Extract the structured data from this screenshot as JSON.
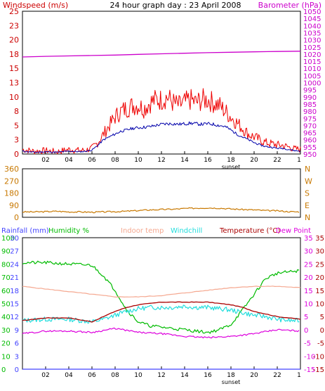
{
  "title": "24 hour graph day : 23 April 2008",
  "colors": {
    "wind": "#ee0000",
    "gust_avg": "#0000aa",
    "baro": "#cc00cc",
    "dir": "#c87800",
    "rain": "#4444ff",
    "hum": "#00bb00",
    "indoor": "#f5a890",
    "chill": "#22dddd",
    "temp": "#aa0000",
    "dew": "#dd00dd",
    "bg": "#ffffff",
    "border": "#000000"
  },
  "chart_data": [
    {
      "type": "line",
      "title": "24 hour graph day : 23 April 2008",
      "left_axis_label": "Windspeed (m/s)",
      "right_axis_label": "Barometer (hPa)",
      "left_ticks": [
        "25",
        "23",
        "20",
        "18",
        "15",
        "13",
        "10",
        "8",
        "5",
        "3",
        "0"
      ],
      "right_ticks": [
        "1050",
        "1045",
        "1040",
        "1035",
        "1030",
        "1025",
        "1020",
        "1015",
        "1010",
        "1005",
        "1000",
        "995",
        "990",
        "985",
        "980",
        "975",
        "970",
        "965",
        "960",
        "955",
        "950"
      ],
      "x_ticks": [
        "02",
        "04",
        "06",
        "08",
        "10",
        "12",
        "14",
        "16",
        "18",
        "20",
        "22"
      ],
      "x_end_tick": "1",
      "x_marker": "sunset",
      "ylim_left": [
        0,
        25
      ],
      "ylim_right": [
        950,
        1050
      ],
      "series": [
        {
          "key": "wind_gust",
          "axis": "left",
          "x": [
            0,
            1,
            2,
            3,
            4,
            5,
            5.5,
            6,
            6.5,
            7,
            7.5,
            8,
            8.5,
            9,
            9.5,
            10,
            10.5,
            11,
            11.5,
            12,
            12.5,
            13,
            13.5,
            14,
            14.5,
            15,
            15.5,
            16,
            16.5,
            17,
            17.5,
            18,
            18.5,
            19,
            19.5,
            20,
            20.5,
            21,
            21.5,
            22,
            22.5,
            23,
            23.5,
            24
          ],
          "values": [
            0.8,
            0.5,
            0.6,
            0.4,
            0.8,
            0.6,
            0.7,
            1.0,
            2.0,
            3.5,
            5.0,
            6.5,
            7.5,
            8.0,
            8.5,
            8.5,
            8.0,
            9.0,
            9.5,
            9.5,
            10.0,
            9.0,
            8.5,
            9.0,
            9.5,
            9.0,
            9.5,
            9.5,
            9.0,
            8.5,
            7.5,
            6.5,
            5.5,
            4.5,
            3.5,
            3.0,
            2.5,
            2.0,
            1.8,
            1.6,
            1.5,
            1.2,
            0.9,
            0.8
          ]
        },
        {
          "key": "wind_avg",
          "axis": "left",
          "x": [
            0,
            1,
            2,
            3,
            4,
            5,
            5.5,
            6,
            6.5,
            7,
            7.5,
            8,
            8.5,
            9,
            9.5,
            10,
            10.5,
            11,
            11.5,
            12,
            12.5,
            13,
            13.5,
            14,
            14.5,
            15,
            15.5,
            16,
            16.5,
            17,
            17.5,
            18,
            18.5,
            19,
            19.5,
            20,
            20.5,
            21,
            21.5,
            22,
            22.5,
            23,
            23.5,
            24
          ],
          "values": [
            0.5,
            0.3,
            0.4,
            0.3,
            0.5,
            0.4,
            0.5,
            0.7,
            1.5,
            2.5,
            3.0,
            3.5,
            4.0,
            4.2,
            4.5,
            4.6,
            4.7,
            4.8,
            5.0,
            5.2,
            5.3,
            5.3,
            5.2,
            5.3,
            5.4,
            5.3,
            5.2,
            5.3,
            5.2,
            5.0,
            4.8,
            4.2,
            3.5,
            3.0,
            2.5,
            2.0,
            1.6,
            1.3,
            1.2,
            1.0,
            1.0,
            0.8,
            0.6,
            0.5
          ]
        },
        {
          "key": "barometer",
          "axis": "right",
          "x": [
            0,
            2,
            4,
            6,
            8,
            10,
            12,
            14,
            16,
            18,
            20,
            22,
            24
          ],
          "values": [
            1018.0,
            1018.4,
            1018.7,
            1019.0,
            1019.3,
            1019.8,
            1020.2,
            1020.6,
            1021.0,
            1021.3,
            1021.6,
            1021.8,
            1022.0
          ]
        }
      ]
    },
    {
      "type": "line",
      "left_ticks": [
        "360",
        "270",
        "180",
        "90",
        "0"
      ],
      "right_ticks": [
        "N",
        "W",
        "S",
        "E",
        "N"
      ],
      "ylim": [
        0,
        360
      ],
      "series": [
        {
          "key": "wind_dir",
          "x": [
            0,
            1,
            2,
            3,
            4,
            5,
            6,
            7,
            8,
            9,
            10,
            11,
            12,
            13,
            14,
            15,
            16,
            17,
            18,
            19,
            20,
            21,
            22,
            23,
            24
          ],
          "values": [
            40,
            40,
            42,
            45,
            40,
            40,
            38,
            40,
            42,
            45,
            50,
            55,
            58,
            60,
            65,
            68,
            70,
            68,
            62,
            58,
            55,
            50,
            48,
            42,
            40
          ]
        }
      ]
    },
    {
      "type": "line",
      "labels": {
        "rain": "Rainfall (mm)",
        "hum": "Humidity %",
        "indoor": "Indoor temp",
        "chill": "Windchill",
        "temp": "Temperature (°C)",
        "dew": "Dew Point"
      },
      "left_rain_ticks": [
        "30",
        "27",
        "24",
        "21",
        "18",
        "15",
        "12",
        "9",
        "6",
        "3",
        "0"
      ],
      "left_hum_ticks": [
        "100",
        "90",
        "80",
        "70",
        "60",
        "50",
        "40",
        "30",
        "20",
        "10",
        "0"
      ],
      "right_ticks_a": [
        "35",
        "30",
        "25",
        "20",
        "15",
        "10",
        "5",
        "0",
        "-5",
        "-10",
        "-15"
      ],
      "right_ticks_b": [
        "35",
        "30",
        "25",
        "20",
        "15",
        "10",
        "5",
        "0",
        "-5",
        "-10",
        "-15"
      ],
      "ylim_rain": [
        0,
        30
      ],
      "ylim_hum": [
        0,
        100
      ],
      "ylim_temp": [
        -15,
        35
      ],
      "series": [
        {
          "key": "humidity",
          "axis": "hum",
          "x": [
            0,
            2,
            4,
            6,
            7,
            8,
            9,
            10,
            11,
            12,
            13,
            14,
            15,
            16,
            17,
            18,
            19,
            20,
            21,
            22,
            24
          ],
          "values": [
            81,
            81,
            80,
            79,
            71,
            60,
            45,
            36,
            33,
            32,
            31,
            30,
            29,
            28,
            30,
            34,
            45,
            57,
            69,
            73,
            75
          ]
        },
        {
          "key": "indoor",
          "axis": "temp",
          "x": [
            0,
            2,
            4,
            6,
            8,
            10,
            12,
            14,
            16,
            18,
            20,
            22,
            24
          ],
          "values": [
            16.5,
            15.5,
            14.5,
            13.5,
            12.5,
            12.5,
            13.0,
            14.0,
            15.0,
            16.0,
            16.5,
            16.5,
            16.0
          ]
        },
        {
          "key": "windchill",
          "axis": "temp",
          "x": [
            0,
            2,
            4,
            6,
            7,
            8,
            9,
            10,
            11,
            12,
            13,
            14,
            15,
            16,
            17,
            18,
            19,
            20,
            21,
            22,
            23,
            24
          ],
          "values": [
            3.5,
            4.0,
            4.0,
            3.0,
            4.0,
            5.5,
            7.0,
            8.0,
            8.5,
            8.5,
            8.5,
            9.0,
            8.5,
            8.5,
            8.0,
            7.5,
            6.5,
            5.5,
            5.0,
            4.0,
            3.5,
            3.5
          ]
        },
        {
          "key": "temperature",
          "axis": "temp",
          "x": [
            0,
            2,
            4,
            6,
            7,
            8,
            9,
            10,
            11,
            12,
            13,
            14,
            15,
            16,
            17,
            18,
            19,
            20,
            21,
            22,
            23,
            24
          ],
          "values": [
            3.5,
            4.5,
            4.5,
            3.0,
            5.0,
            7.0,
            8.5,
            9.5,
            10.0,
            10.5,
            10.5,
            10.5,
            10.5,
            10.5,
            10.0,
            9.5,
            8.5,
            7.0,
            6.0,
            5.0,
            4.5,
            4.0
          ]
        },
        {
          "key": "dewpoint",
          "axis": "temp",
          "x": [
            0,
            2,
            4,
            6,
            8,
            10,
            12,
            14,
            16,
            18,
            20,
            22,
            24
          ],
          "values": [
            -1.5,
            -0.5,
            -0.5,
            -1.0,
            0.5,
            -1.0,
            -1.5,
            -2.5,
            -3.0,
            -2.5,
            -1.5,
            0,
            -0.5
          ]
        },
        {
          "key": "rainfall",
          "axis": "rain",
          "x": [
            0,
            24
          ],
          "values": [
            0,
            0
          ]
        }
      ]
    }
  ]
}
